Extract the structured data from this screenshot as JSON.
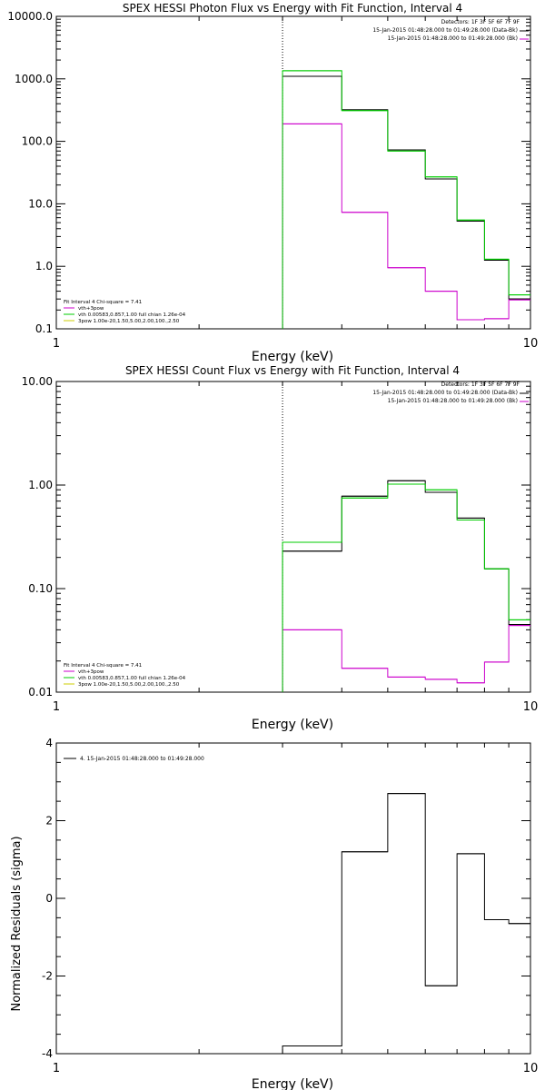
{
  "chart_data": [
    {
      "type": "line",
      "title": "SPEX HESSI Photon Flux vs Energy with Fit Function, Interval 4",
      "xlabel": "Energy (keV)",
      "ylabel": "",
      "x_scale": "log",
      "y_scale": "log",
      "xlim": [
        1,
        10
      ],
      "ylim": [
        0.1,
        10000
      ],
      "x_ticks": [
        "1",
        "10"
      ],
      "y_ticks": [
        "0.1",
        "1.0",
        "10.0",
        "100.0",
        "1000.0",
        "10000.0"
      ],
      "header": [
        "Detectors: 1F 3F 5F 6F 7F 9F",
        "15-Jan-2015 01:48:28.000 to 01:49:28.000 (Data-Bk)",
        "15-Jan-2015 01:48:28.000 to 01:49:28.000 (Bk)"
      ],
      "legend_notes": [
        "Fit Interval  4   Chi-square = 7.41",
        "vth+3pow",
        "vth 0.00583,0.857,1.00  full chian 1.26e-04",
        "3pow 1.00e-20,1.50,5.00,2.00,100.,2.50"
      ],
      "legend_colors": [
        "#000000",
        "#cc00cc",
        "#00cc00",
        "#cccc00"
      ],
      "vline_x": 3.0,
      "bin_edges": [
        3.0,
        4.0,
        5.0,
        6.0,
        7.0,
        8.0,
        9.0,
        10.0
      ],
      "series": [
        {
          "name": "15-Jan-2015 01:48:28.000 to 01:49:28.000 (Data-Bk)",
          "color": "#000000",
          "values": [
            1100,
            320,
            73,
            25,
            5.3,
            1.25,
            0.3
          ]
        },
        {
          "name": "15-Jan-2015 01:48:28.000 to 01:49:28.000 (Bk)",
          "color": "#cc00cc",
          "values": [
            190,
            7.3,
            0.95,
            0.4,
            0.14,
            0.145,
            0.29
          ]
        },
        {
          "color": "#00cc00",
          "values": [
            1350,
            310,
            70,
            27,
            5.5,
            1.3,
            0.35
          ]
        }
      ]
    },
    {
      "type": "line",
      "title": "SPEX HESSI Count Flux vs Energy with Fit Function, Interval 4",
      "xlabel": "Energy (keV)",
      "ylabel": "",
      "x_scale": "log",
      "y_scale": "log",
      "xlim": [
        1,
        10
      ],
      "ylim": [
        0.01,
        10
      ],
      "x_ticks": [
        "1",
        "10"
      ],
      "y_ticks": [
        "0.01",
        "0.10",
        "1.00",
        "10.00"
      ],
      "header": [
        "Detectors: 1F 3F 5F 6F 7F 9F",
        "15-Jan-2015 01:48:28.000 to 01:49:28.000 (Data-Bk)",
        "15-Jan-2015 01:48:28.000 to 01:49:28.000 (Bk)"
      ],
      "legend_notes": [
        "Fit Interval  4   Chi-square = 7.41",
        "vth+3pow",
        "vth 0.00583,0.857,1.00  full chian 1.26e-04",
        "3pow 1.00e-20,1.50,5.00,2.00,100.,2.50"
      ],
      "legend_colors": [
        "#000000",
        "#cc00cc",
        "#00cc00",
        "#cccc00"
      ],
      "vline_x": 3.0,
      "bin_edges": [
        3.0,
        4.0,
        5.0,
        6.0,
        7.0,
        8.0,
        9.0,
        10.0
      ],
      "series": [
        {
          "name": "15-Jan-2015 01:48:28.000 to 01:49:28.000 (Data-Bk)",
          "color": "#000000",
          "values": [
            0.23,
            0.78,
            1.1,
            0.85,
            0.48,
            0.155,
            0.045
          ]
        },
        {
          "name": "15-Jan-2015 01:48:28.000 to 01:49:28.000 (Bk)",
          "color": "#cc00cc",
          "values": [
            0.04,
            0.017,
            0.014,
            0.0133,
            0.0123,
            0.0195,
            0.044
          ]
        },
        {
          "color": "#00cc00",
          "values": [
            0.28,
            0.75,
            1.02,
            0.9,
            0.46,
            0.155,
            0.05
          ]
        }
      ]
    },
    {
      "type": "line",
      "title": "",
      "xlabel": "Energy (keV)",
      "ylabel": "Normalized Residuals (sigma)",
      "x_scale": "log",
      "y_scale": "linear",
      "xlim": [
        1,
        10
      ],
      "ylim": [
        -4,
        4
      ],
      "x_ticks": [
        "1",
        "10"
      ],
      "y_ticks": [
        "-4",
        "-2",
        "0",
        "2",
        "4"
      ],
      "legend_notes": [
        "4. 15-Jan-2015 01:48:28.000 to 01:49:28.000"
      ],
      "legend_colors": [
        "#000000"
      ],
      "bin_edges": [
        3.0,
        4.0,
        5.0,
        6.0,
        7.0,
        8.0,
        9.0,
        10.0
      ],
      "series": [
        {
          "name": "4. 15-Jan-2015 01:48:28.000 to 01:49:28.000",
          "color": "#000000",
          "values": [
            -3.8,
            1.2,
            2.7,
            -2.25,
            1.15,
            -0.55,
            -0.65
          ]
        }
      ]
    }
  ]
}
